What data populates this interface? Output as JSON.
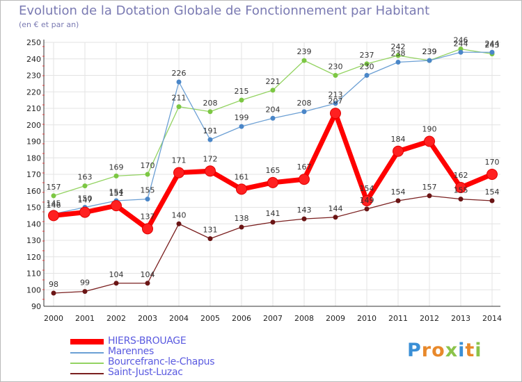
{
  "title": "Evolution de la Dotation Globale de Fonctionnement par Habitant",
  "subtitle": "(en € et par an)",
  "logo": "Proxiti",
  "chart_data": {
    "type": "line",
    "title": "Evolution de la Dotation Globale de Fonctionnement par Habitant",
    "subtitle": "(en € et par an)",
    "xlabel": "",
    "ylabel": "",
    "x": [
      "2000",
      "2001",
      "2002",
      "2003",
      "2004",
      "2005",
      "2006",
      "2007",
      "2008",
      "2009",
      "2010",
      "2011",
      "2012",
      "2013",
      "2014"
    ],
    "ylim": [
      90,
      250
    ],
    "yticks": [
      90,
      100,
      110,
      120,
      130,
      140,
      150,
      160,
      170,
      180,
      190,
      200,
      210,
      220,
      230,
      240,
      250
    ],
    "grid": true,
    "legend_position": "bottom-left",
    "series": [
      {
        "name": "HIERS-BROUAGE",
        "color": "#ff0000",
        "values": [
          145,
          147,
          151,
          137,
          171,
          172,
          161,
          165,
          167,
          207,
          154,
          184,
          190,
          162,
          170
        ],
        "labels": [
          "145",
          "147",
          "151",
          "137",
          "171",
          "172",
          "161",
          "165",
          "167",
          "207",
          "154",
          "184",
          "190",
          "162",
          "170"
        ]
      },
      {
        "name": "Marennes",
        "color": "#6b9fd4",
        "values": [
          146,
          150,
          154,
          155,
          226,
          191,
          199,
          204,
          208,
          213,
          230,
          238,
          239,
          244,
          244
        ],
        "labels": [
          "146",
          "150",
          "154",
          "155",
          "226",
          "191",
          "199",
          "204",
          "208",
          "213",
          "230",
          "238",
          "239",
          "244",
          "244"
        ]
      },
      {
        "name": "Bourcefranc-le-Chapus",
        "color": "#93d361",
        "values": [
          157,
          163,
          169,
          170,
          211,
          208,
          215,
          221,
          239,
          230,
          237,
          242,
          239,
          246,
          243
        ],
        "labels": [
          "157",
          "163",
          "169",
          "170",
          "211",
          "208",
          "215",
          "221",
          "239",
          "230",
          "237",
          "242",
          "239",
          "246",
          "243"
        ]
      },
      {
        "name": "Saint-Just-Luzac",
        "color": "#7a1f1f",
        "values": [
          98,
          99,
          104,
          104,
          140,
          131,
          138,
          141,
          143,
          144,
          149,
          154,
          157,
          155,
          154
        ],
        "labels": [
          "98",
          "99",
          "104",
          "104",
          "140",
          "131",
          "138",
          "141",
          "143",
          "144",
          "149",
          "154",
          "157",
          "155",
          "154"
        ]
      }
    ]
  }
}
